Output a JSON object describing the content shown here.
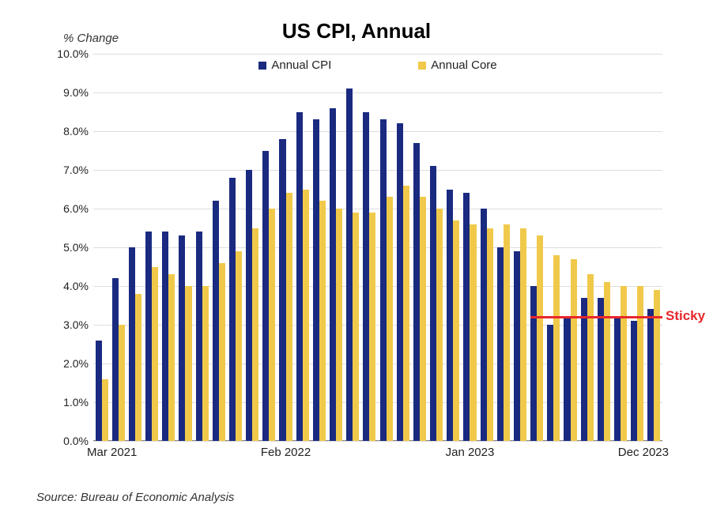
{
  "chart": {
    "type": "bar",
    "title": "US CPI, Annual",
    "title_fontsize": 26,
    "y_axis_title": "% Change",
    "background_color": "#ffffff",
    "grid_color": "#dddddd",
    "ylim": [
      0,
      10
    ],
    "ytick_step": 1,
    "ytick_format_suffix": "%",
    "ytick_decimals": 1,
    "x_labels": [
      {
        "text": "Mar 2021",
        "index": 0,
        "align": "start"
      },
      {
        "text": "Feb 2022",
        "index": 11,
        "align": "center"
      },
      {
        "text": "Jan 2023",
        "index": 22,
        "align": "center"
      },
      {
        "text": "Dec 2023",
        "index": 33,
        "align": "end"
      }
    ],
    "series": [
      {
        "name": "Annual CPI",
        "color": "#1a2a80",
        "values": [
          2.6,
          4.2,
          5.0,
          5.4,
          5.4,
          5.3,
          5.4,
          6.2,
          6.8,
          7.0,
          7.5,
          7.8,
          8.5,
          8.3,
          8.6,
          9.1,
          8.5,
          8.3,
          8.2,
          7.7,
          7.1,
          6.5,
          6.4,
          6.0,
          5.0,
          4.9,
          4.0,
          3.0,
          3.2,
          3.7,
          3.7,
          3.2,
          3.1,
          3.4
        ]
      },
      {
        "name": "Annual Core",
        "color": "#f0c94a",
        "values": [
          1.6,
          3.0,
          3.8,
          4.5,
          4.3,
          4.0,
          4.0,
          4.6,
          4.9,
          5.5,
          6.0,
          6.4,
          6.5,
          6.2,
          6.0,
          5.9,
          5.9,
          6.3,
          6.6,
          6.3,
          6.0,
          5.7,
          5.6,
          5.5,
          5.6,
          5.5,
          5.3,
          4.8,
          4.7,
          4.3,
          4.1,
          4.0,
          4.0,
          3.9
        ]
      }
    ],
    "legend": {
      "items": [
        {
          "label": "Annual CPI",
          "color": "#1a2a80"
        },
        {
          "label": "Annual Core",
          "color": "#f0c94a"
        }
      ]
    },
    "annotation": {
      "text": "Sticky",
      "color": "#e8262c",
      "y_value": 3.2,
      "x_start_index": 26,
      "x_end_index": 34
    },
    "source": "Source: Bureau of Economic Analysis"
  }
}
